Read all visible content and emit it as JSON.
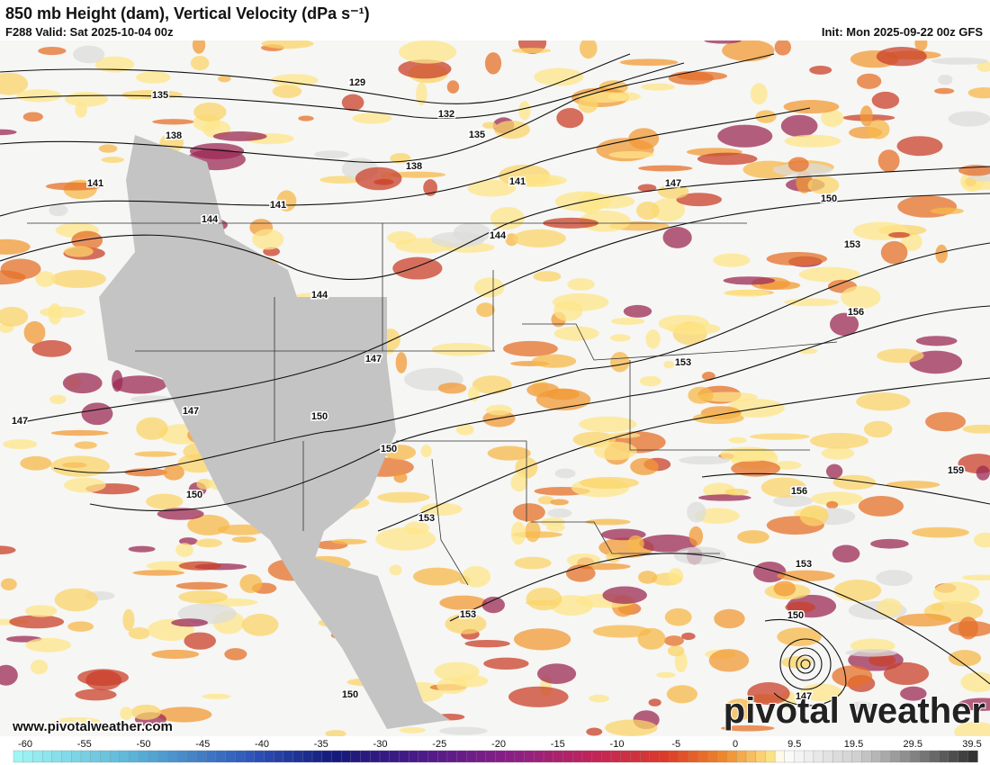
{
  "header": {
    "title": "850 mb Height (dam), Vertical Velocity (dPa s⁻¹)",
    "valid": "F288 Valid: Sat 2025-10-04 00z",
    "init": "Init: Mon 2025-09-22 00z GFS"
  },
  "map": {
    "contour_labels": [
      129,
      132,
      135,
      135,
      138,
      138,
      141,
      141,
      141,
      144,
      144,
      144,
      147,
      147,
      147,
      147,
      150,
      150,
      150,
      150,
      150,
      150,
      153,
      153,
      153,
      153,
      153,
      156,
      156,
      159,
      147
    ]
  },
  "footer": {
    "website": "www.pivotalweather.com",
    "watermark": "pivotal weather"
  },
  "colorbar": {
    "ticks": [
      -60,
      -55,
      -50,
      -45,
      -40,
      -35,
      -30,
      -25,
      -20,
      -15,
      -10,
      -5,
      0,
      9.5,
      19.5,
      29.5,
      39.5
    ]
  }
}
